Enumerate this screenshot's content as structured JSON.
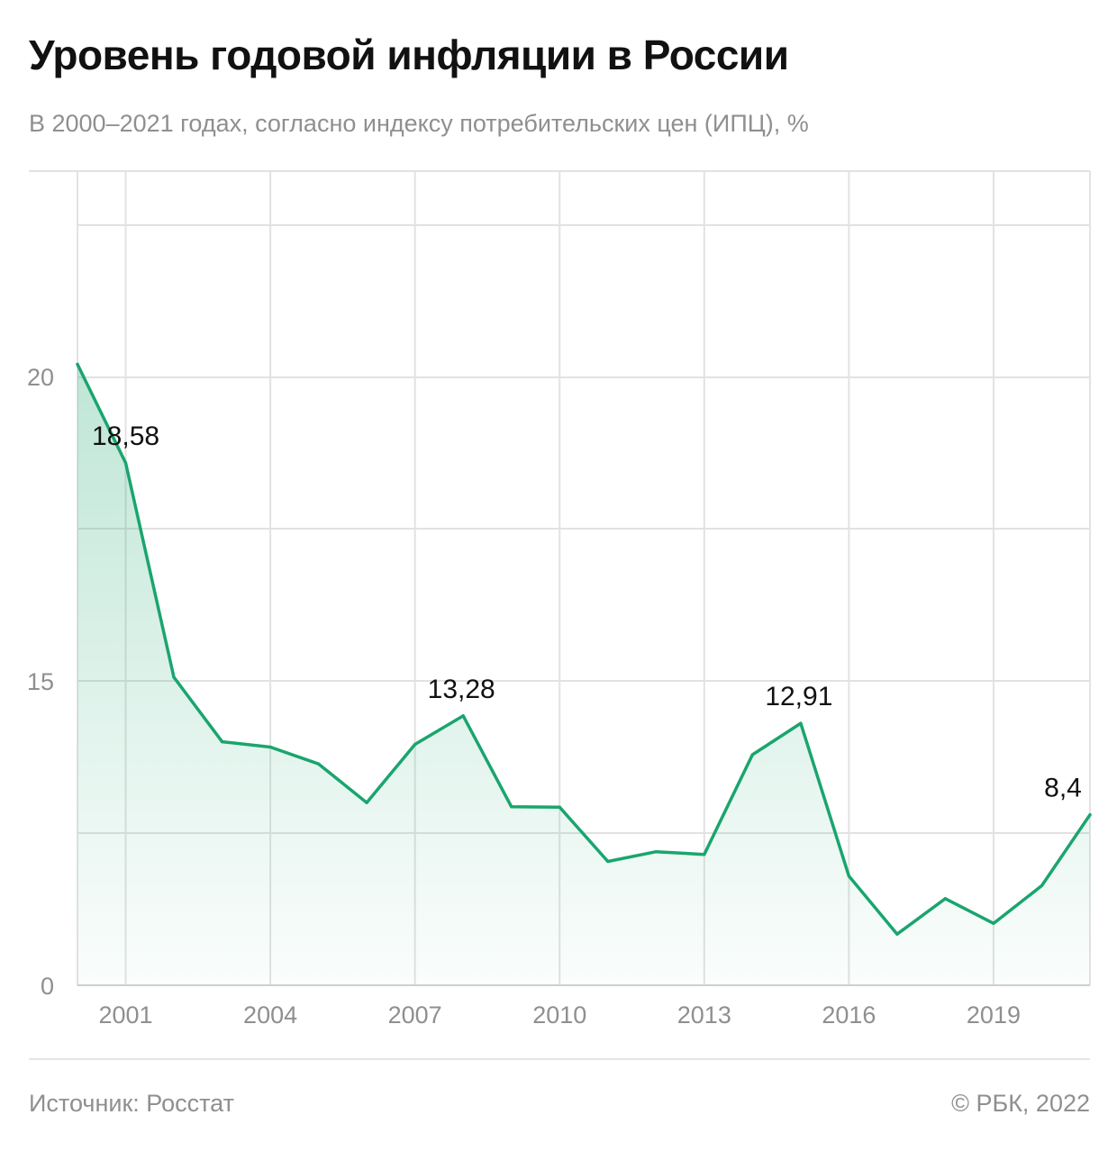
{
  "header": {
    "title": "Уровень годовой инфляции в России",
    "subtitle": "В 2000–2021 годах, согласно индексу потребительских цен (ИПЦ), %"
  },
  "footer": {
    "source": "Источник: Росстат",
    "copyright": "© РБК, 2022"
  },
  "colors": {
    "line": "#1aa56e",
    "area_top": "#1aa56e",
    "grid": "#e2e2e2",
    "axis": "#cfcfcf"
  },
  "chart_data": {
    "type": "area",
    "title": "Уровень годовой инфляции в России",
    "subtitle": "В 2000–2021 годах, согласно индексу потребительских цен (ИПЦ), %",
    "xlabel": "",
    "ylabel": "",
    "x": [
      2000,
      2001,
      2002,
      2003,
      2004,
      2005,
      2006,
      2007,
      2008,
      2009,
      2010,
      2011,
      2012,
      2013,
      2014,
      2015,
      2016,
      2017,
      2018,
      2019,
      2020,
      2021
    ],
    "xticks": [
      "2001",
      "2004",
      "2007",
      "2010",
      "2013",
      "2016",
      "2019"
    ],
    "ytick_labels": [
      "0",
      "15",
      "20"
    ],
    "xlim": [
      2000,
      2021
    ],
    "grid": true,
    "series": [
      {
        "values": [
          20.2,
          18.58,
          15.06,
          12.0,
          11.74,
          10.91,
          9.0,
          11.87,
          13.28,
          8.8,
          8.78,
          6.1,
          6.58,
          6.45,
          11.36,
          12.91,
          5.38,
          2.52,
          4.27,
          3.05,
          4.91,
          8.4
        ]
      }
    ],
    "annotations": [
      {
        "x": 2001,
        "label": "18,58"
      },
      {
        "x": 2008,
        "label": "13,28"
      },
      {
        "x": 2015,
        "label": "12,91"
      },
      {
        "x": 2021,
        "label": "8,4"
      }
    ]
  }
}
